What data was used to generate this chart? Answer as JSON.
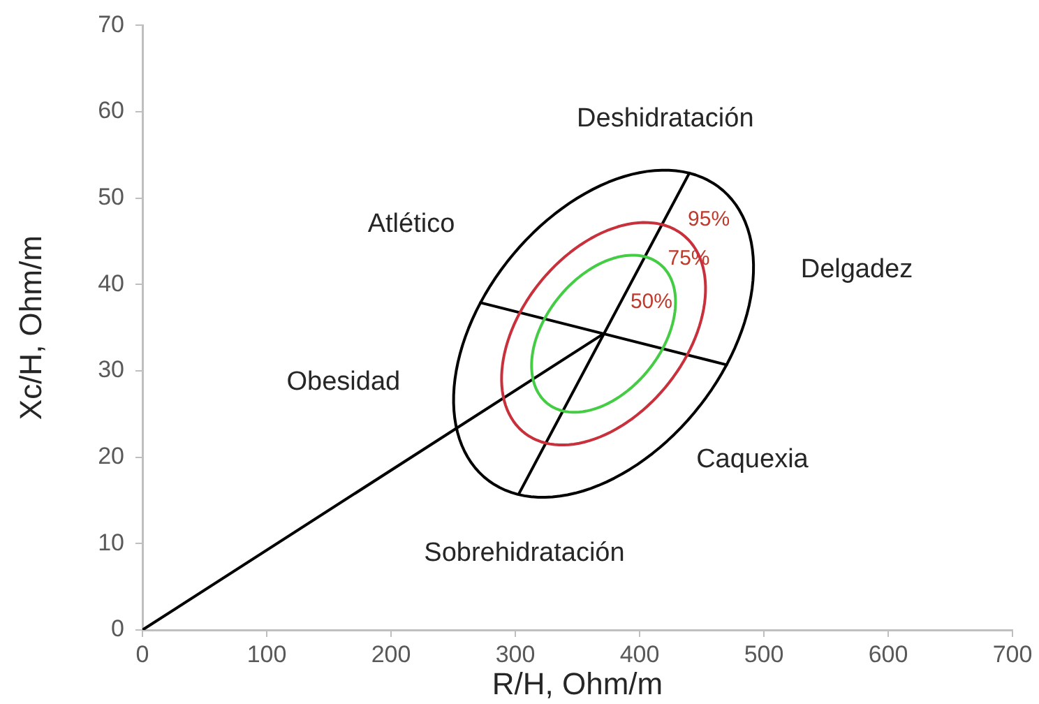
{
  "chart_data": {
    "type": "line",
    "xlabel": "R/H, Ohm/m",
    "ylabel": "Xc/H, Ohm/m",
    "xlim": [
      0,
      700
    ],
    "xticks": [
      0,
      100,
      200,
      300,
      400,
      500,
      600,
      700
    ],
    "ylim": [
      0,
      70
    ],
    "yticks": [
      0,
      10,
      20,
      30,
      40,
      50,
      60,
      70
    ],
    "grid": false,
    "legend": false,
    "series": [
      {
        "color": "#000000",
        "x": [
          0,
          371
        ],
        "values": [
          0,
          34.3
        ]
      },
      {
        "color": "#000000",
        "x": [
          303,
          440
        ],
        "values": [
          15.8,
          52.9
        ]
      },
      {
        "color": "#000000",
        "x": [
          272,
          470
        ],
        "values": [
          37.9,
          30.7
        ]
      }
    ],
    "annotations": [
      "Deshidratación",
      "Atlético",
      "Delgadez",
      "Obesidad",
      "Caquexia",
      "Sobrehidratación",
      "95%",
      "75%",
      "50%"
    ]
  }
}
